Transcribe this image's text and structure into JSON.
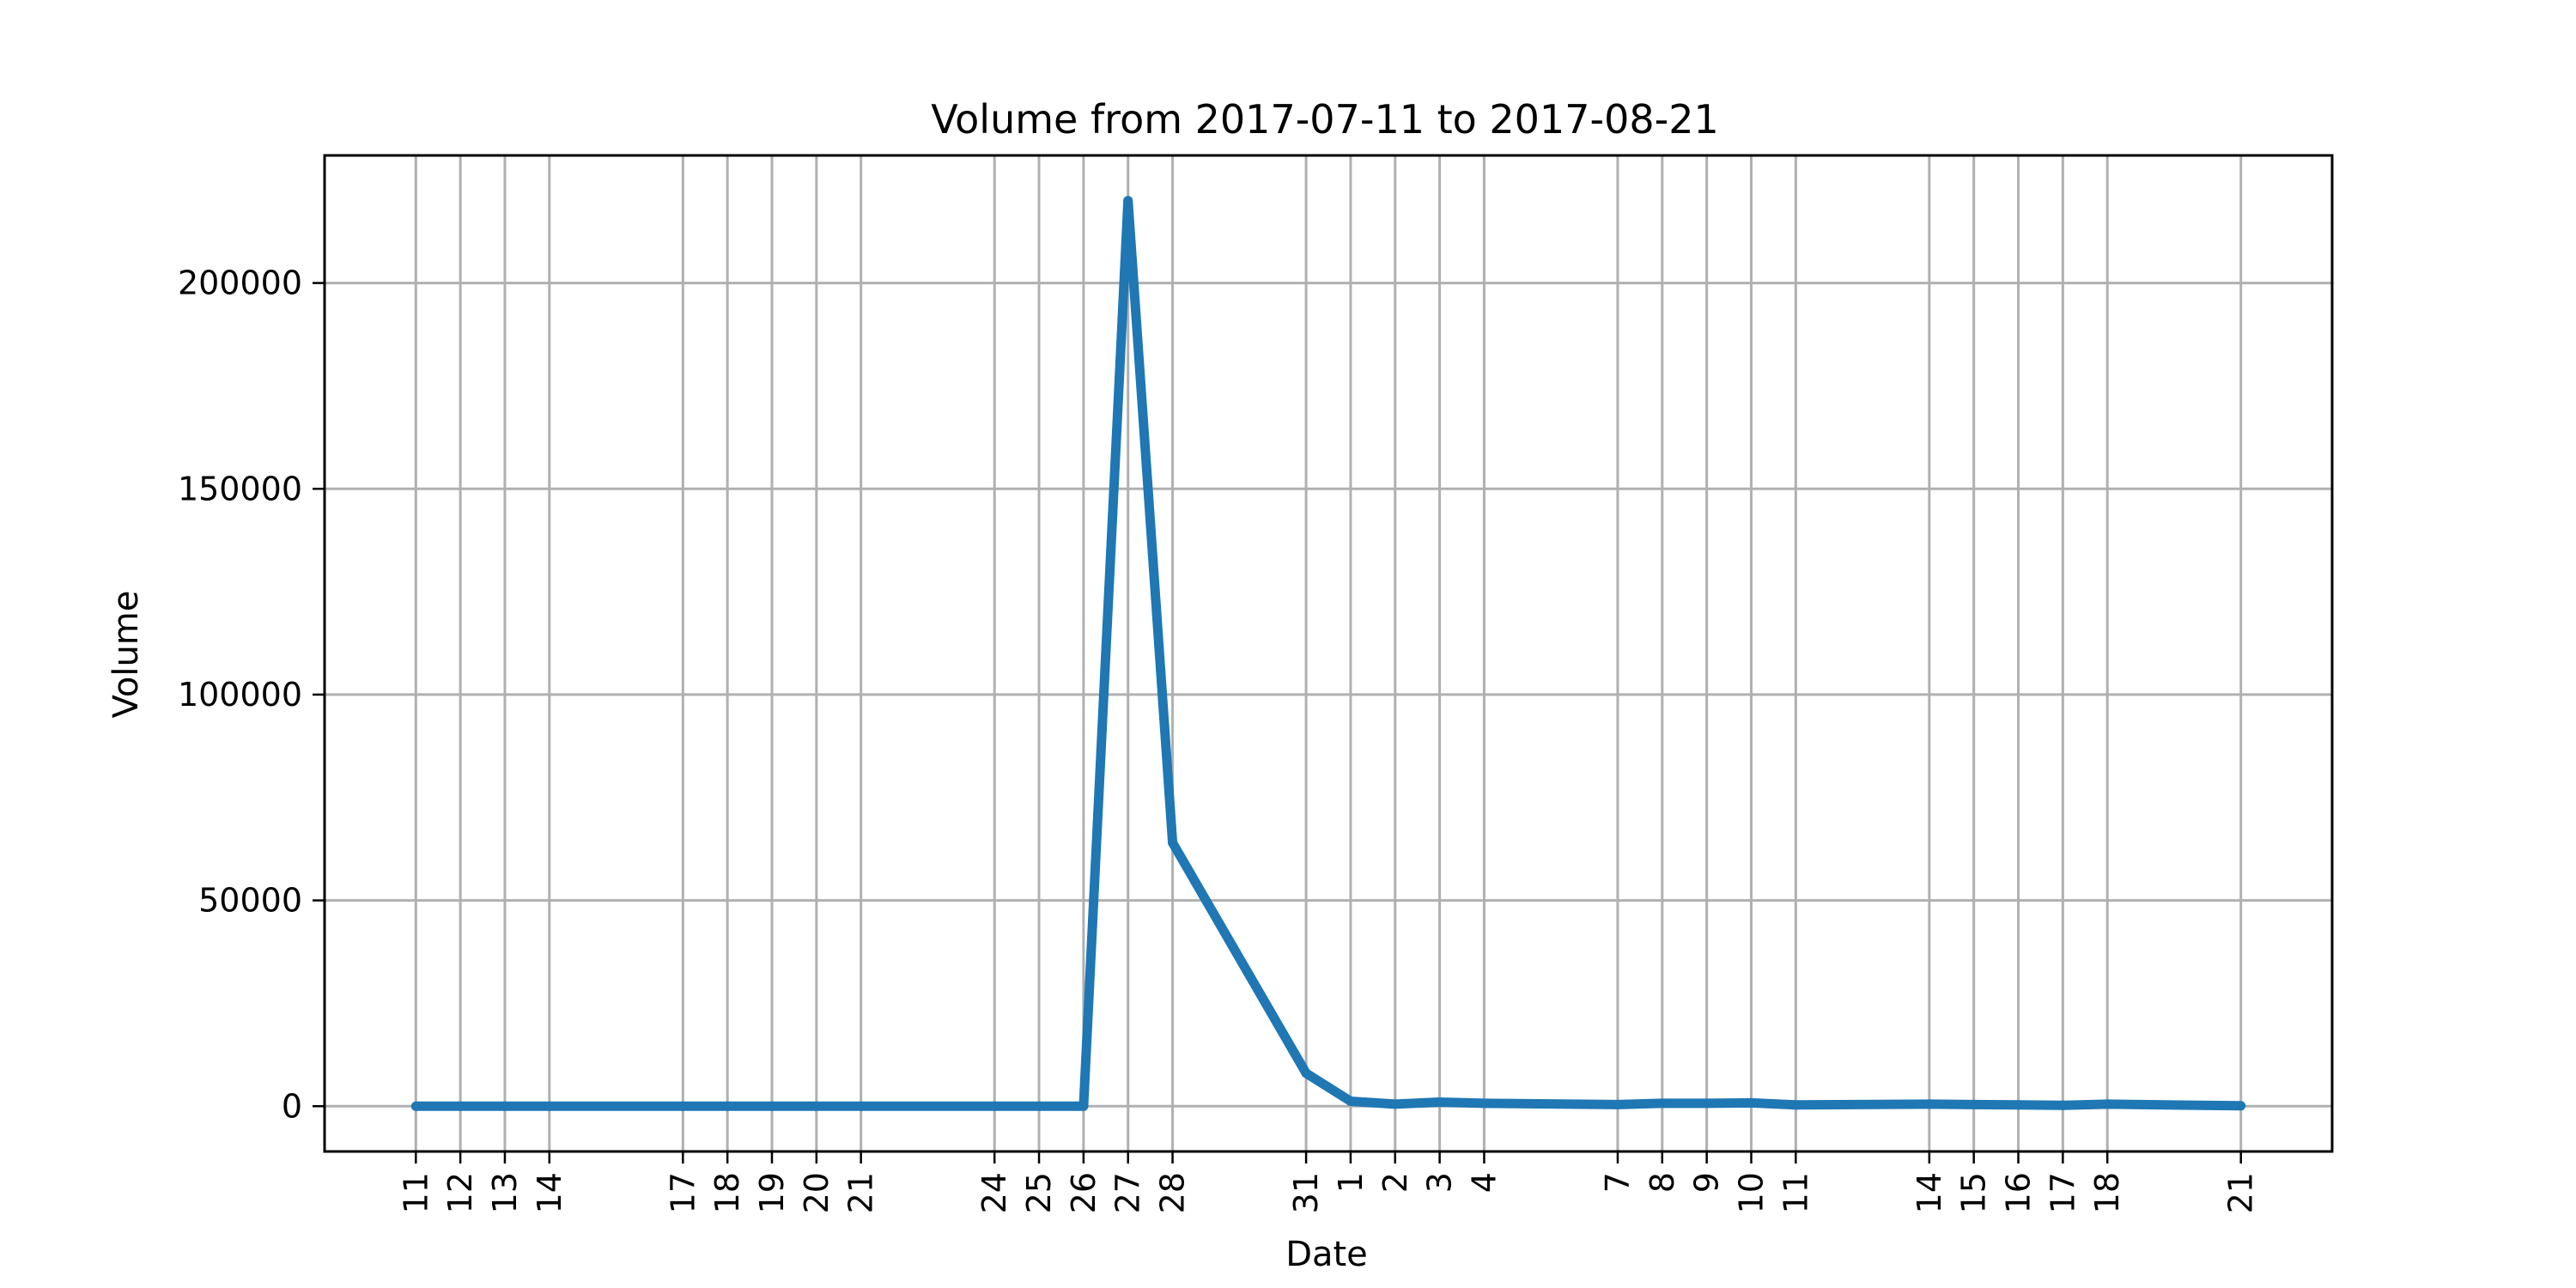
{
  "chart_data": {
    "type": "line",
    "title": "Volume from 2017-07-11 to 2017-08-21",
    "xlabel": "Date",
    "ylabel": "Volume",
    "x": [
      "2017-07-11",
      "2017-07-12",
      "2017-07-13",
      "2017-07-14",
      "2017-07-17",
      "2017-07-18",
      "2017-07-19",
      "2017-07-20",
      "2017-07-21",
      "2017-07-24",
      "2017-07-25",
      "2017-07-26",
      "2017-07-27",
      "2017-07-28",
      "2017-07-31",
      "2017-08-01",
      "2017-08-02",
      "2017-08-03",
      "2017-08-04",
      "2017-08-07",
      "2017-08-08",
      "2017-08-09",
      "2017-08-10",
      "2017-08-11",
      "2017-08-14",
      "2017-08-15",
      "2017-08-16",
      "2017-08-17",
      "2017-08-18",
      "2017-08-21"
    ],
    "tick_labels": [
      "11",
      "12",
      "13",
      "14",
      "17",
      "18",
      "19",
      "20",
      "21",
      "24",
      "25",
      "26",
      "27",
      "28",
      "31",
      "1",
      "2",
      "3",
      "4",
      "7",
      "8",
      "9",
      "10",
      "11",
      "14",
      "15",
      "16",
      "17",
      "18",
      "21"
    ],
    "series": [
      {
        "name": "",
        "color": "#1f77b4",
        "values": [
          0,
          0,
          0,
          0,
          0,
          0,
          0,
          0,
          0,
          0,
          0,
          0,
          220000,
          64000,
          8000,
          1200,
          500,
          1000,
          700,
          400,
          700,
          700,
          800,
          300,
          500,
          400,
          300,
          200,
          500,
          100
        ]
      }
    ],
    "ylim": [
      -11000,
      231000
    ],
    "yticks": [
      0,
      50000,
      100000,
      150000,
      200000
    ],
    "grid": true
  }
}
